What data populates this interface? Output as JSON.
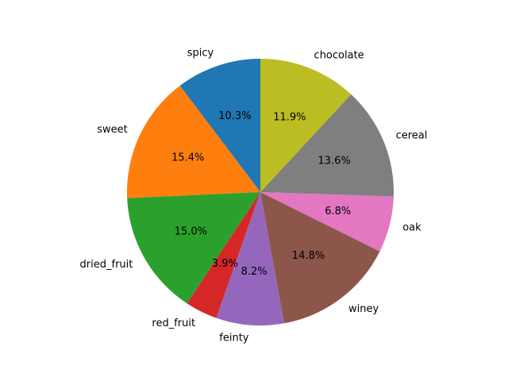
{
  "chart_data": {
    "type": "pie",
    "title": "",
    "start_angle_deg": 90,
    "direction": "counterclockwise",
    "slices": [
      {
        "label": "spicy",
        "value": 10.3,
        "pct_label": "10.3%",
        "color": "#1f77b4"
      },
      {
        "label": "sweet",
        "value": 15.4,
        "pct_label": "15.4%",
        "color": "#ff7f0e"
      },
      {
        "label": "dried_fruit",
        "value": 15.0,
        "pct_label": "15.0%",
        "color": "#2ca02c"
      },
      {
        "label": "red_fruit",
        "value": 3.9,
        "pct_label": "3.9%",
        "color": "#d62728"
      },
      {
        "label": "feinty",
        "value": 8.2,
        "pct_label": "8.2%",
        "color": "#9467bd"
      },
      {
        "label": "winey",
        "value": 14.8,
        "pct_label": "14.8%",
        "color": "#8c564b"
      },
      {
        "label": "oak",
        "value": 6.8,
        "pct_label": "6.8%",
        "color": "#e377c2"
      },
      {
        "label": "cereal",
        "value": 13.6,
        "pct_label": "13.6%",
        "color": "#7f7f7f"
      },
      {
        "label": "chocolate",
        "value": 11.9,
        "pct_label": "11.9%",
        "color": "#bcbd22"
      }
    ]
  }
}
